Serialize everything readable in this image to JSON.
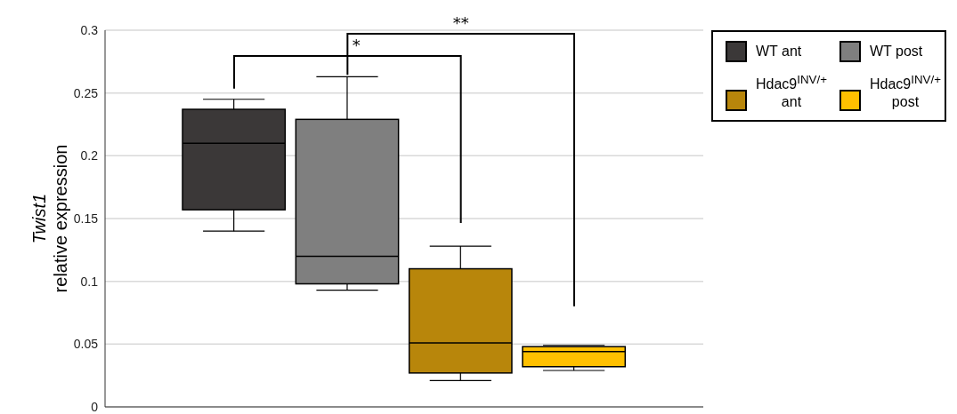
{
  "chart_data": {
    "type": "box",
    "ylabel": "Twist1 relative expression",
    "categories": [
      null
    ],
    "ylim": [
      0,
      0.3
    ],
    "yticks": [
      0,
      0.05,
      0.1,
      0.15,
      0.2,
      0.25,
      0.3
    ],
    "grid": "y",
    "legend": "right",
    "series": [
      {
        "name": "WT ant",
        "color": "#3b3838",
        "boxes": [
          {
            "low": 0.14,
            "q1": 0.157,
            "median": 0.21,
            "q3": 0.237,
            "high": 0.245
          }
        ]
      },
      {
        "name": "WT post",
        "color": "#7f7f7f",
        "boxes": [
          {
            "low": 0.093,
            "q1": 0.098,
            "median": 0.12,
            "q3": 0.229,
            "high": 0.263
          }
        ]
      },
      {
        "name": "Hdac9$^{INV/+}$ ant",
        "color": "#b8860b",
        "boxes": [
          {
            "low": 0.021,
            "q1": 0.027,
            "median": 0.051,
            "q3": 0.11,
            "high": 0.128
          }
        ]
      },
      {
        "name": "Hdac9$^{INV/+}$ post",
        "color": "#ffc000",
        "boxes": [
          {
            "low": 0.029,
            "q1": 0.032,
            "median": 0.044,
            "q3": 0.048,
            "high": 0.049
          }
        ]
      }
    ],
    "annotations": [
      "*",
      "**"
    ]
  }
}
